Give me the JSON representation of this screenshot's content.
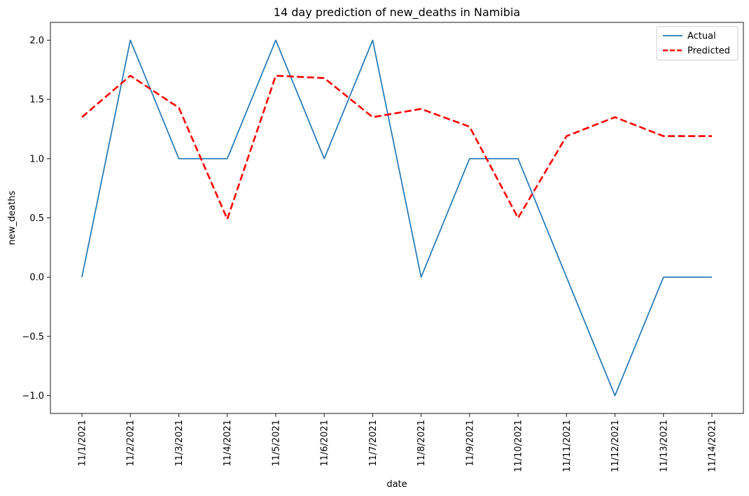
{
  "chart_data": {
    "type": "line",
    "title": "14 day prediction of new_deaths in Namibia",
    "xlabel": "date",
    "ylabel": "new_deaths",
    "x": [
      "11/1/2021",
      "11/2/2021",
      "11/3/2021",
      "11/4/2021",
      "11/5/2021",
      "11/6/2021",
      "11/7/2021",
      "11/8/2021",
      "11/9/2021",
      "11/10/2021",
      "11/11/2021",
      "11/12/2021",
      "11/13/2021",
      "11/14/2021"
    ],
    "ylim": [
      -1.15,
      2.15
    ],
    "yticks": [
      -1.0,
      -0.5,
      0.0,
      0.5,
      1.0,
      1.5,
      2.0
    ],
    "ytick_labels": [
      "−1.0",
      "−0.5",
      "0.0",
      "0.5",
      "1.0",
      "1.5",
      "2.0"
    ],
    "grid": false,
    "legend_position": "top-right",
    "series": [
      {
        "name": "Actual",
        "color": "#1f77b4",
        "style": "solid",
        "values": [
          0,
          2,
          1,
          1,
          2,
          1,
          2,
          0,
          1,
          1,
          0,
          -1,
          0,
          0
        ]
      },
      {
        "name": "Predicted",
        "color": "#ff0000",
        "style": "dashed",
        "values": [
          1.35,
          1.7,
          1.43,
          0.49,
          1.7,
          1.68,
          1.35,
          1.42,
          1.27,
          0.5,
          1.19,
          1.35,
          1.19,
          1.19
        ]
      }
    ]
  }
}
